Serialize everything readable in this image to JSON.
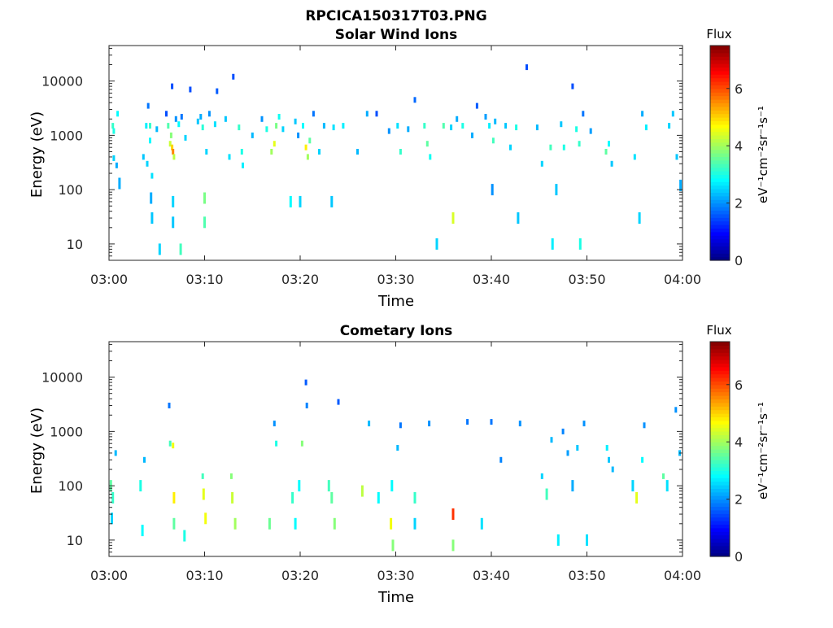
{
  "figure_title": "RPCICA150317T03.PNG",
  "colorbar": {
    "label": "Flux",
    "unit_text": "eV⁻¹cm⁻²sr⁻¹s⁻¹",
    "ticks": [
      "0",
      "2",
      "4",
      "6"
    ],
    "range": [
      0,
      7.5
    ],
    "colormap": "jet"
  },
  "chart_data": [
    {
      "type": "heatmap",
      "title": "Solar Wind Ions",
      "xlabel": "Time",
      "ylabel": "Energy (eV)",
      "x_ticks": [
        "03:00",
        "03:10",
        "03:20",
        "03:30",
        "03:40",
        "03:50",
        "04:00"
      ],
      "x_range_minutes": [
        0,
        60
      ],
      "y_scale": "log",
      "y_range": [
        5,
        45000
      ],
      "y_ticks": [
        "10",
        "100",
        "1000",
        "10000"
      ],
      "patches": [
        {
          "t": 0.4,
          "e": 1500,
          "v": 3.2
        },
        {
          "t": 0.5,
          "e": 1200,
          "v": 3.0
        },
        {
          "t": 0.5,
          "e": 380,
          "v": 2.5
        },
        {
          "t": 0.8,
          "e": 280,
          "v": 2.2
        },
        {
          "t": 0.9,
          "e": 2500,
          "v": 2.8
        },
        {
          "t": 1.1,
          "e": 130,
          "v": 2.2
        },
        {
          "t": 3.6,
          "e": 400,
          "v": 2.4
        },
        {
          "t": 3.9,
          "e": 1500,
          "v": 2.7
        },
        {
          "t": 4.0,
          "e": 300,
          "v": 2.5
        },
        {
          "t": 4.1,
          "e": 3500,
          "v": 1.8
        },
        {
          "t": 4.3,
          "e": 800,
          "v": 2.8
        },
        {
          "t": 4.3,
          "e": 1500,
          "v": 3.2
        },
        {
          "t": 4.4,
          "e": 70,
          "v": 2.2
        },
        {
          "t": 4.5,
          "e": 180,
          "v": 2.6
        },
        {
          "t": 4.5,
          "e": 30,
          "v": 2.4
        },
        {
          "t": 5.0,
          "e": 1300,
          "v": 2.3
        },
        {
          "t": 5.3,
          "e": 8,
          "v": 2.5
        },
        {
          "t": 6.0,
          "e": 2500,
          "v": 1.5
        },
        {
          "t": 6.2,
          "e": 1500,
          "v": 3.4
        },
        {
          "t": 6.4,
          "e": 700,
          "v": 4.3
        },
        {
          "t": 6.5,
          "e": 1000,
          "v": 3.8
        },
        {
          "t": 6.6,
          "e": 600,
          "v": 5.0
        },
        {
          "t": 6.7,
          "e": 500,
          "v": 5.6
        },
        {
          "t": 6.8,
          "e": 400,
          "v": 4.2
        },
        {
          "t": 6.6,
          "e": 8000,
          "v": 1.5
        },
        {
          "t": 6.7,
          "e": 60,
          "v": 2.5
        },
        {
          "t": 6.7,
          "e": 25,
          "v": 2.4
        },
        {
          "t": 7.0,
          "e": 2000,
          "v": 2.0
        },
        {
          "t": 7.3,
          "e": 1600,
          "v": 2.8
        },
        {
          "t": 7.5,
          "e": 8,
          "v": 3.3
        },
        {
          "t": 7.6,
          "e": 2200,
          "v": 1.8
        },
        {
          "t": 8.0,
          "e": 900,
          "v": 2.5
        },
        {
          "t": 8.5,
          "e": 7000,
          "v": 1.5
        },
        {
          "t": 9.3,
          "e": 1800,
          "v": 2.4
        },
        {
          "t": 9.6,
          "e": 2200,
          "v": 2.2
        },
        {
          "t": 9.8,
          "e": 1400,
          "v": 3.1
        },
        {
          "t": 10.0,
          "e": 70,
          "v": 3.7
        },
        {
          "t": 10.0,
          "e": 25,
          "v": 3.4
        },
        {
          "t": 10.2,
          "e": 500,
          "v": 2.5
        },
        {
          "t": 10.5,
          "e": 2500,
          "v": 2.0
        },
        {
          "t": 11.1,
          "e": 1600,
          "v": 2.6
        },
        {
          "t": 11.3,
          "e": 6500,
          "v": 1.6
        },
        {
          "t": 12.2,
          "e": 2000,
          "v": 2.4
        },
        {
          "t": 12.6,
          "e": 400,
          "v": 2.6
        },
        {
          "t": 13.0,
          "e": 12000,
          "v": 1.5
        },
        {
          "t": 13.6,
          "e": 1400,
          "v": 3.2
        },
        {
          "t": 13.9,
          "e": 500,
          "v": 3.0
        },
        {
          "t": 14.0,
          "e": 280,
          "v": 2.7
        },
        {
          "t": 15.0,
          "e": 1000,
          "v": 2.3
        },
        {
          "t": 16.0,
          "e": 2000,
          "v": 2.0
        },
        {
          "t": 16.5,
          "e": 1300,
          "v": 3.0
        },
        {
          "t": 17.0,
          "e": 500,
          "v": 4.0
        },
        {
          "t": 17.3,
          "e": 700,
          "v": 4.5
        },
        {
          "t": 17.5,
          "e": 1500,
          "v": 3.7
        },
        {
          "t": 17.8,
          "e": 2200,
          "v": 2.9
        },
        {
          "t": 18.2,
          "e": 1300,
          "v": 2.5
        },
        {
          "t": 19.0,
          "e": 60,
          "v": 2.8
        },
        {
          "t": 19.5,
          "e": 1800,
          "v": 2.4
        },
        {
          "t": 19.8,
          "e": 1000,
          "v": 2.0
        },
        {
          "t": 20.0,
          "e": 60,
          "v": 2.5
        },
        {
          "t": 20.3,
          "e": 1500,
          "v": 2.8
        },
        {
          "t": 20.6,
          "e": 600,
          "v": 4.8
        },
        {
          "t": 20.8,
          "e": 400,
          "v": 4.0
        },
        {
          "t": 21.0,
          "e": 800,
          "v": 3.5
        },
        {
          "t": 21.4,
          "e": 2500,
          "v": 1.8
        },
        {
          "t": 22.0,
          "e": 500,
          "v": 2.5
        },
        {
          "t": 22.5,
          "e": 1500,
          "v": 2.3
        },
        {
          "t": 23.3,
          "e": 60,
          "v": 2.4
        },
        {
          "t": 23.5,
          "e": 1400,
          "v": 2.6
        },
        {
          "t": 24.5,
          "e": 1500,
          "v": 2.7
        },
        {
          "t": 26.0,
          "e": 500,
          "v": 2.3
        },
        {
          "t": 27.0,
          "e": 2500,
          "v": 2.2
        },
        {
          "t": 28.0,
          "e": 2500,
          "v": 1.5
        },
        {
          "t": 29.3,
          "e": 1200,
          "v": 2.0
        },
        {
          "t": 30.2,
          "e": 1500,
          "v": 2.6
        },
        {
          "t": 30.5,
          "e": 500,
          "v": 3.2
        },
        {
          "t": 31.3,
          "e": 1300,
          "v": 2.2
        },
        {
          "t": 32.0,
          "e": 4500,
          "v": 1.7
        },
        {
          "t": 33.0,
          "e": 1500,
          "v": 3.2
        },
        {
          "t": 33.3,
          "e": 700,
          "v": 3.5
        },
        {
          "t": 33.6,
          "e": 400,
          "v": 2.9
        },
        {
          "t": 34.3,
          "e": 10,
          "v": 2.5
        },
        {
          "t": 35.0,
          "e": 1500,
          "v": 3.4
        },
        {
          "t": 35.8,
          "e": 1400,
          "v": 2.5
        },
        {
          "t": 36.0,
          "e": 30,
          "v": 4.4
        },
        {
          "t": 36.4,
          "e": 2000,
          "v": 2.2
        },
        {
          "t": 37.0,
          "e": 1500,
          "v": 3.0
        },
        {
          "t": 38.0,
          "e": 1000,
          "v": 2.2
        },
        {
          "t": 38.5,
          "e": 3500,
          "v": 1.6
        },
        {
          "t": 39.4,
          "e": 2200,
          "v": 2.1
        },
        {
          "t": 39.8,
          "e": 1500,
          "v": 2.7
        },
        {
          "t": 40.2,
          "e": 800,
          "v": 3.3
        },
        {
          "t": 40.1,
          "e": 100,
          "v": 2.0
        },
        {
          "t": 40.4,
          "e": 1800,
          "v": 2.3
        },
        {
          "t": 41.5,
          "e": 1500,
          "v": 2.4
        },
        {
          "t": 42.0,
          "e": 600,
          "v": 2.5
        },
        {
          "t": 42.6,
          "e": 1400,
          "v": 3.0
        },
        {
          "t": 42.8,
          "e": 30,
          "v": 2.4
        },
        {
          "t": 43.7,
          "e": 18000,
          "v": 1.5
        },
        {
          "t": 44.8,
          "e": 1400,
          "v": 2.3
        },
        {
          "t": 45.3,
          "e": 300,
          "v": 2.5
        },
        {
          "t": 46.2,
          "e": 600,
          "v": 3.3
        },
        {
          "t": 46.4,
          "e": 10,
          "v": 2.7
        },
        {
          "t": 46.8,
          "e": 100,
          "v": 2.4
        },
        {
          "t": 47.3,
          "e": 1600,
          "v": 2.4
        },
        {
          "t": 47.6,
          "e": 600,
          "v": 3.0
        },
        {
          "t": 48.5,
          "e": 8000,
          "v": 1.5
        },
        {
          "t": 48.9,
          "e": 1300,
          "v": 3.0
        },
        {
          "t": 49.2,
          "e": 700,
          "v": 3.2
        },
        {
          "t": 49.3,
          "e": 10,
          "v": 3.0
        },
        {
          "t": 49.6,
          "e": 2500,
          "v": 1.8
        },
        {
          "t": 50.4,
          "e": 1200,
          "v": 2.1
        },
        {
          "t": 52.0,
          "e": 500,
          "v": 3.5
        },
        {
          "t": 52.3,
          "e": 700,
          "v": 2.8
        },
        {
          "t": 52.6,
          "e": 300,
          "v": 2.4
        },
        {
          "t": 55.0,
          "e": 400,
          "v": 2.6
        },
        {
          "t": 55.5,
          "e": 30,
          "v": 2.5
        },
        {
          "t": 55.8,
          "e": 2500,
          "v": 2.2
        },
        {
          "t": 56.2,
          "e": 1400,
          "v": 2.7
        },
        {
          "t": 58.6,
          "e": 1500,
          "v": 2.5
        },
        {
          "t": 59.0,
          "e": 2500,
          "v": 2.4
        },
        {
          "t": 59.4,
          "e": 400,
          "v": 2.4
        },
        {
          "t": 59.8,
          "e": 120,
          "v": 2.2
        }
      ]
    },
    {
      "type": "heatmap",
      "title": "Cometary Ions",
      "xlabel": "Time",
      "ylabel": "Energy (eV)",
      "x_ticks": [
        "03:00",
        "03:10",
        "03:20",
        "03:30",
        "03:40",
        "03:50",
        "04:00"
      ],
      "x_range_minutes": [
        0,
        60
      ],
      "y_scale": "log",
      "y_range": [
        5,
        45000
      ],
      "y_ticks": [
        "10",
        "100",
        "1000",
        "10000"
      ],
      "patches": [
        {
          "t": 0.2,
          "e": 100,
          "v": 3.5
        },
        {
          "t": 0.4,
          "e": 60,
          "v": 3.2
        },
        {
          "t": 0.3,
          "e": 25,
          "v": 2.5
        },
        {
          "t": 0.7,
          "e": 400,
          "v": 2.3
        },
        {
          "t": 3.3,
          "e": 100,
          "v": 3.0
        },
        {
          "t": 3.5,
          "e": 15,
          "v": 2.8
        },
        {
          "t": 3.7,
          "e": 300,
          "v": 2.3
        },
        {
          "t": 6.3,
          "e": 3000,
          "v": 1.8
        },
        {
          "t": 6.4,
          "e": 600,
          "v": 3.3
        },
        {
          "t": 6.7,
          "e": 550,
          "v": 4.6
        },
        {
          "t": 6.8,
          "e": 60,
          "v": 4.8
        },
        {
          "t": 6.8,
          "e": 20,
          "v": 3.5
        },
        {
          "t": 7.9,
          "e": 12,
          "v": 3.0
        },
        {
          "t": 9.8,
          "e": 150,
          "v": 3.3
        },
        {
          "t": 9.9,
          "e": 70,
          "v": 4.5
        },
        {
          "t": 10.1,
          "e": 25,
          "v": 4.6
        },
        {
          "t": 12.8,
          "e": 150,
          "v": 3.8
        },
        {
          "t": 12.9,
          "e": 60,
          "v": 4.3
        },
        {
          "t": 13.2,
          "e": 20,
          "v": 4.0
        },
        {
          "t": 16.8,
          "e": 20,
          "v": 3.6
        },
        {
          "t": 17.3,
          "e": 1400,
          "v": 2.0
        },
        {
          "t": 17.5,
          "e": 600,
          "v": 3.0
        },
        {
          "t": 19.2,
          "e": 60,
          "v": 3.2
        },
        {
          "t": 19.5,
          "e": 20,
          "v": 2.8
        },
        {
          "t": 19.9,
          "e": 100,
          "v": 2.8
        },
        {
          "t": 20.2,
          "e": 600,
          "v": 3.8
        },
        {
          "t": 20.6,
          "e": 8000,
          "v": 1.6
        },
        {
          "t": 20.7,
          "e": 3000,
          "v": 1.9
        },
        {
          "t": 23.0,
          "e": 100,
          "v": 3.3
        },
        {
          "t": 23.3,
          "e": 60,
          "v": 3.5
        },
        {
          "t": 23.6,
          "e": 20,
          "v": 3.8
        },
        {
          "t": 24.0,
          "e": 3500,
          "v": 1.6
        },
        {
          "t": 26.5,
          "e": 80,
          "v": 4.2
        },
        {
          "t": 27.2,
          "e": 1400,
          "v": 2.3
        },
        {
          "t": 28.2,
          "e": 60,
          "v": 2.8
        },
        {
          "t": 29.6,
          "e": 100,
          "v": 2.8
        },
        {
          "t": 29.5,
          "e": 20,
          "v": 4.6
        },
        {
          "t": 29.7,
          "e": 8,
          "v": 3.8
        },
        {
          "t": 30.2,
          "e": 500,
          "v": 2.3
        },
        {
          "t": 30.5,
          "e": 1300,
          "v": 1.8
        },
        {
          "t": 32.0,
          "e": 60,
          "v": 3.2
        },
        {
          "t": 32.0,
          "e": 20,
          "v": 2.5
        },
        {
          "t": 33.5,
          "e": 1400,
          "v": 2.0
        },
        {
          "t": 36.0,
          "e": 30,
          "v": 6.2
        },
        {
          "t": 36.0,
          "e": 8,
          "v": 3.8
        },
        {
          "t": 37.5,
          "e": 1500,
          "v": 1.8
        },
        {
          "t": 39.0,
          "e": 20,
          "v": 2.6
        },
        {
          "t": 40.0,
          "e": 1500,
          "v": 1.8
        },
        {
          "t": 41.0,
          "e": 300,
          "v": 1.9
        },
        {
          "t": 43.0,
          "e": 1400,
          "v": 2.0
        },
        {
          "t": 45.3,
          "e": 150,
          "v": 2.5
        },
        {
          "t": 45.8,
          "e": 70,
          "v": 3.3
        },
        {
          "t": 46.3,
          "e": 700,
          "v": 2.3
        },
        {
          "t": 47.0,
          "e": 10,
          "v": 2.7
        },
        {
          "t": 47.5,
          "e": 1000,
          "v": 1.9
        },
        {
          "t": 48.0,
          "e": 400,
          "v": 2.1
        },
        {
          "t": 48.5,
          "e": 100,
          "v": 2.2
        },
        {
          "t": 49.0,
          "e": 500,
          "v": 2.4
        },
        {
          "t": 49.7,
          "e": 1400,
          "v": 2.0
        },
        {
          "t": 50.0,
          "e": 10,
          "v": 2.6
        },
        {
          "t": 52.1,
          "e": 500,
          "v": 2.7
        },
        {
          "t": 52.3,
          "e": 300,
          "v": 2.4
        },
        {
          "t": 52.7,
          "e": 200,
          "v": 2.3
        },
        {
          "t": 54.8,
          "e": 100,
          "v": 2.5
        },
        {
          "t": 55.2,
          "e": 60,
          "v": 4.5
        },
        {
          "t": 55.8,
          "e": 300,
          "v": 2.8
        },
        {
          "t": 56.0,
          "e": 1300,
          "v": 2.0
        },
        {
          "t": 58.0,
          "e": 150,
          "v": 3.5
        },
        {
          "t": 58.4,
          "e": 100,
          "v": 2.6
        },
        {
          "t": 59.3,
          "e": 2500,
          "v": 2.0
        },
        {
          "t": 59.7,
          "e": 400,
          "v": 2.3
        }
      ]
    }
  ]
}
